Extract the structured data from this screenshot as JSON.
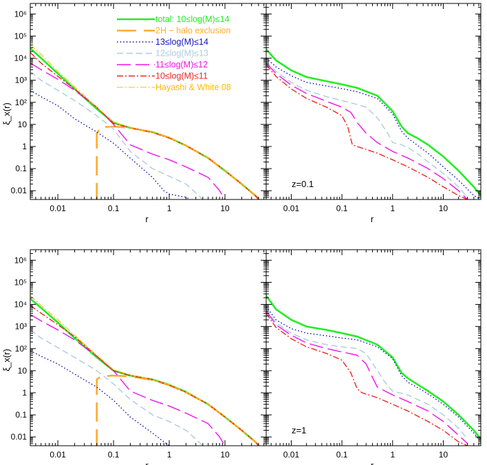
{
  "chart_data": [
    {
      "panel": "top-left",
      "type": "line",
      "xlabel": "r",
      "ylabel": "ξ_x(r)",
      "xscale": "log",
      "yscale": "log",
      "xlim": [
        0.0032,
        55
      ],
      "ylim": [
        0.004,
        3000000
      ],
      "xticklabels": [
        "0.01",
        "0.1",
        "1",
        "10"
      ],
      "yticklabels": [
        "0.01",
        "0.1",
        "1",
        "10",
        "10²",
        "10³",
        "10⁴",
        "10⁵",
        "10⁶"
      ],
      "legend_position": "top-right",
      "series": [
        {
          "name": "total: 10≤log(M)≤14",
          "color": "#22ee22",
          "dash": "solid",
          "width": 2.6,
          "x": [
            0.0032,
            0.005,
            0.01,
            0.02,
            0.05,
            0.1,
            0.2,
            0.5,
            1,
            2,
            5,
            10,
            20,
            35,
            45
          ],
          "y": [
            28000,
            10000,
            2000,
            400,
            50,
            12,
            7,
            4.5,
            2.5,
            1.1,
            0.3,
            0.08,
            0.02,
            0.006,
            0.003
          ]
        },
        {
          "name": "2H − halo exclusion",
          "color": "#ffaa33",
          "dash": "long",
          "width": 2.6,
          "x": [
            0.05,
            0.05,
            0.06,
            0.1,
            0.2,
            0.5,
            1,
            2,
            5,
            10,
            20,
            35,
            45
          ],
          "y": [
            0.003,
            4,
            7.5,
            8,
            7,
            4.5,
            2.5,
            1.1,
            0.3,
            0.08,
            0.02,
            0.006,
            0.003
          ]
        },
        {
          "name": "13≤log(M)≤14",
          "color": "#1111bb",
          "dash": "dot",
          "width": 1.4,
          "x": [
            0.0032,
            0.005,
            0.01,
            0.02,
            0.05,
            0.1,
            0.2,
            0.5,
            0.8,
            1,
            2,
            3
          ],
          "y": [
            350,
            180,
            70,
            18,
            4.5,
            1.4,
            0.3,
            0.04,
            0.01,
            0.007,
            0.005,
            0.003
          ]
        },
        {
          "name": "12≤log(M)≤13",
          "color": "#aaccdd",
          "dash": "dash",
          "width": 1.4,
          "x": [
            0.0032,
            0.005,
            0.01,
            0.02,
            0.05,
            0.1,
            0.2,
            0.5,
            1,
            2,
            3,
            4
          ],
          "y": [
            2500,
            1000,
            350,
            120,
            25,
            6,
            0.6,
            0.1,
            0.045,
            0.02,
            0.008,
            0.004
          ]
        },
        {
          "name": "11≤log(M)≤12",
          "color": "#ee11ee",
          "dash": "longdash",
          "width": 1.4,
          "x": [
            0.0032,
            0.005,
            0.01,
            0.02,
            0.05,
            0.1,
            0.2,
            0.5,
            1,
            2,
            5,
            8,
            10
          ],
          "y": [
            6000,
            3000,
            1100,
            350,
            60,
            10,
            1.2,
            0.45,
            0.25,
            0.12,
            0.04,
            0.01,
            0.004
          ]
        },
        {
          "name": "10≤log(M)≤11",
          "color": "#ee2222",
          "dash": "dashdot",
          "width": 1.4,
          "x": [
            0.0032,
            0.005,
            0.01,
            0.02,
            0.05,
            0.1,
            0.2,
            0.5,
            1,
            2,
            5,
            10,
            20,
            35,
            45
          ],
          "y": [
            18000,
            6000,
            1500,
            400,
            60,
            11,
            7,
            4.3,
            2.4,
            1.1,
            0.3,
            0.08,
            0.02,
            0.006,
            0.003
          ]
        },
        {
          "name": "Hayashi & White 08",
          "color": "#ffbb00",
          "dash": "dashdot",
          "width": 1.1,
          "x": [
            0.0032,
            0.005,
            0.01,
            0.02,
            0.05,
            0.1,
            0.2,
            0.5,
            1,
            2,
            5,
            10,
            20,
            35
          ],
          "y": [
            40000,
            15000,
            2500,
            500,
            60,
            13,
            7,
            4.5,
            2.5,
            1.1,
            0.3,
            0.08,
            0.02,
            0.006
          ]
        }
      ]
    },
    {
      "panel": "top-right",
      "type": "line",
      "xlabel": "r",
      "xscale": "log",
      "yscale": "log",
      "xlim": [
        0.0032,
        55
      ],
      "ylim": [
        0.004,
        3000000
      ],
      "xticklabels": [
        "0.01",
        "0.1",
        "1",
        "10"
      ],
      "annotation": "z=0.1",
      "series": [
        {
          "color": "#22ee22",
          "dash": "solid",
          "width": 2.6,
          "x": [
            0.0032,
            0.005,
            0.01,
            0.02,
            0.05,
            0.1,
            0.2,
            0.5,
            1,
            1.5,
            2,
            3,
            5,
            10,
            20,
            40,
            55
          ],
          "y": [
            25000,
            8000,
            2800,
            1400,
            900,
            650,
            450,
            200,
            40,
            8,
            4,
            2.5,
            1.2,
            0.35,
            0.08,
            0.015,
            0.006
          ]
        },
        {
          "color": "#1111bb",
          "dash": "dot",
          "width": 1.4,
          "x": [
            0.0032,
            0.005,
            0.01,
            0.02,
            0.05,
            0.1,
            0.2,
            0.5,
            1,
            1.5,
            2,
            3,
            5,
            10,
            20,
            40,
            55
          ],
          "y": [
            10000,
            4000,
            1600,
            800,
            550,
            420,
            300,
            150,
            30,
            5,
            2.4,
            1.2,
            0.5,
            0.12,
            0.03,
            0.006,
            0.004
          ]
        },
        {
          "color": "#aaccdd",
          "dash": "dash",
          "width": 1.4,
          "x": [
            0.0032,
            0.005,
            0.01,
            0.02,
            0.05,
            0.1,
            0.2,
            0.3,
            0.5,
            0.8,
            1,
            1.5,
            2,
            3,
            5,
            10,
            20,
            30
          ],
          "y": [
            7000,
            2500,
            800,
            350,
            180,
            120,
            80,
            60,
            20,
            4,
            1.5,
            1.2,
            0.9,
            0.5,
            0.2,
            0.06,
            0.015,
            0.005
          ]
        },
        {
          "color": "#ee11ee",
          "dash": "longdash",
          "width": 1.4,
          "x": [
            0.0032,
            0.005,
            0.01,
            0.02,
            0.05,
            0.1,
            0.15,
            0.2,
            0.3,
            0.5,
            1,
            2,
            5,
            10,
            20,
            30
          ],
          "y": [
            6000,
            2000,
            600,
            250,
            110,
            60,
            35,
            12,
            4,
            1.5,
            0.6,
            0.3,
            0.1,
            0.035,
            0.01,
            0.004
          ]
        },
        {
          "color": "#ee2222",
          "dash": "dashdot",
          "width": 1.4,
          "x": [
            0.0032,
            0.005,
            0.01,
            0.02,
            0.05,
            0.1,
            0.13,
            0.16,
            0.2,
            0.5,
            1,
            2,
            5,
            10,
            20,
            30
          ],
          "y": [
            5000,
            1500,
            400,
            150,
            60,
            25,
            8,
            1.2,
            1,
            0.5,
            0.25,
            0.12,
            0.04,
            0.015,
            0.006,
            0.004
          ]
        }
      ]
    },
    {
      "panel": "bottom-left",
      "type": "line",
      "xlabel": "r",
      "ylabel": "ξ_x(r)",
      "xscale": "log",
      "yscale": "log",
      "xlim": [
        0.0032,
        55
      ],
      "ylim": [
        0.004,
        3000000
      ],
      "xticklabels": [
        "0.01",
        "0.1",
        "1",
        "10"
      ],
      "yticklabels": [
        "0.01",
        "0.1",
        "1",
        "10",
        "10²",
        "10³",
        "10⁴",
        "10⁵",
        "10⁶"
      ],
      "series": [
        {
          "color": "#22ee22",
          "dash": "solid",
          "width": 2.6,
          "x": [
            0.0032,
            0.005,
            0.01,
            0.02,
            0.05,
            0.1,
            0.2,
            0.5,
            1,
            2,
            5,
            10,
            20,
            35,
            45
          ],
          "y": [
            18000,
            7000,
            1500,
            300,
            40,
            10,
            6,
            4,
            2.3,
            1.1,
            0.3,
            0.08,
            0.02,
            0.006,
            0.003
          ]
        },
        {
          "color": "#ffaa33",
          "dash": "long",
          "width": 2.6,
          "x": [
            0.05,
            0.05,
            0.06,
            0.1,
            0.2,
            0.5,
            1,
            2,
            5,
            10,
            20,
            35,
            45
          ],
          "y": [
            0.003,
            4,
            5.5,
            6,
            5.5,
            3.8,
            2.2,
            1.05,
            0.3,
            0.08,
            0.02,
            0.006,
            0.003
          ]
        },
        {
          "color": "#1111bb",
          "dash": "dot",
          "width": 1.4,
          "x": [
            0.0032,
            0.005,
            0.01,
            0.02,
            0.05,
            0.1,
            0.2,
            0.5,
            0.8,
            1
          ],
          "y": [
            80,
            45,
            20,
            7,
            1.8,
            0.45,
            0.08,
            0.015,
            0.006,
            0.004
          ]
        },
        {
          "color": "#aaccdd",
          "dash": "dash",
          "width": 1.4,
          "x": [
            0.0032,
            0.005,
            0.01,
            0.02,
            0.05,
            0.1,
            0.2,
            0.5,
            1,
            2,
            3,
            4
          ],
          "y": [
            700,
            300,
            110,
            40,
            10,
            2.5,
            0.5,
            0.1,
            0.05,
            0.02,
            0.008,
            0.004
          ]
        },
        {
          "color": "#ee11ee",
          "dash": "longdash",
          "width": 1.4,
          "x": [
            0.0032,
            0.005,
            0.01,
            0.02,
            0.05,
            0.1,
            0.2,
            0.5,
            1,
            2,
            5,
            8,
            10
          ],
          "y": [
            3500,
            1800,
            700,
            250,
            45,
            10,
            1.2,
            0.45,
            0.25,
            0.12,
            0.04,
            0.01,
            0.004
          ]
        },
        {
          "color": "#ee2222",
          "dash": "dashdot",
          "width": 1.4,
          "x": [
            0.0032,
            0.005,
            0.01,
            0.02,
            0.05,
            0.1,
            0.2,
            0.5,
            1,
            2,
            5,
            10,
            20,
            35,
            45
          ],
          "y": [
            9000,
            4000,
            1200,
            350,
            45,
            10,
            6,
            4,
            2.2,
            1.05,
            0.3,
            0.08,
            0.02,
            0.006,
            0.003
          ]
        },
        {
          "color": "#ffbb00",
          "dash": "dashdot",
          "width": 1.1,
          "x": [
            0.0032,
            0.005,
            0.01,
            0.02,
            0.05,
            0.1,
            0.2,
            0.5,
            1,
            2,
            5,
            10,
            20,
            35
          ],
          "y": [
            25000,
            9000,
            2000,
            400,
            50,
            11,
            6.5,
            4,
            2.3,
            1.1,
            0.3,
            0.08,
            0.02,
            0.006
          ]
        }
      ]
    },
    {
      "panel": "bottom-right",
      "type": "line",
      "xlabel": "r",
      "xscale": "log",
      "yscale": "log",
      "xlim": [
        0.0032,
        55
      ],
      "ylim": [
        0.004,
        3000000
      ],
      "xticklabels": [
        "0.01",
        "0.1",
        "1",
        "10"
      ],
      "annotation": "z=1",
      "series": [
        {
          "color": "#22ee22",
          "dash": "solid",
          "width": 2.6,
          "x": [
            0.0032,
            0.005,
            0.01,
            0.02,
            0.05,
            0.1,
            0.2,
            0.5,
            1,
            1.5,
            2,
            3,
            5,
            10,
            20,
            40,
            55
          ],
          "y": [
            25000,
            6000,
            2000,
            1000,
            700,
            500,
            350,
            150,
            40,
            8,
            4.5,
            2.5,
            1.2,
            0.4,
            0.1,
            0.02,
            0.008
          ]
        },
        {
          "color": "#1111bb",
          "dash": "dot",
          "width": 1.4,
          "x": [
            0.0032,
            0.005,
            0.01,
            0.02,
            0.05,
            0.1,
            0.2,
            0.5,
            1,
            1.5,
            2,
            3,
            5,
            10,
            20,
            40,
            55
          ],
          "y": [
            8000,
            2000,
            800,
            500,
            380,
            300,
            250,
            120,
            35,
            6,
            3,
            1.8,
            0.9,
            0.3,
            0.08,
            0.015,
            0.006
          ]
        },
        {
          "color": "#aaccdd",
          "dash": "dash",
          "width": 1.4,
          "x": [
            0.0032,
            0.005,
            0.01,
            0.02,
            0.05,
            0.1,
            0.2,
            0.3,
            0.5,
            0.8,
            1,
            2,
            5,
            10,
            20,
            30
          ],
          "y": [
            6000,
            1500,
            500,
            250,
            150,
            120,
            100,
            60,
            10,
            2,
            1.2,
            0.8,
            0.3,
            0.1,
            0.025,
            0.008
          ]
        },
        {
          "color": "#ee11ee",
          "dash": "longdash",
          "width": 1.4,
          "x": [
            0.0032,
            0.005,
            0.01,
            0.02,
            0.05,
            0.1,
            0.2,
            0.3,
            0.4,
            0.5,
            1,
            2,
            5,
            10,
            20,
            30
          ],
          "y": [
            5000,
            1200,
            400,
            180,
            100,
            70,
            50,
            20,
            5,
            1.8,
            0.8,
            0.4,
            0.15,
            0.05,
            0.012,
            0.005
          ]
        },
        {
          "color": "#ee2222",
          "dash": "dashdot",
          "width": 1.4,
          "x": [
            0.0032,
            0.005,
            0.01,
            0.02,
            0.05,
            0.1,
            0.15,
            0.2,
            0.25,
            0.5,
            1,
            2,
            5,
            10,
            20,
            30
          ],
          "y": [
            4000,
            900,
            280,
            120,
            60,
            30,
            8,
            1.5,
            1,
            0.6,
            0.3,
            0.15,
            0.05,
            0.02,
            0.006,
            0.004
          ]
        }
      ]
    }
  ]
}
